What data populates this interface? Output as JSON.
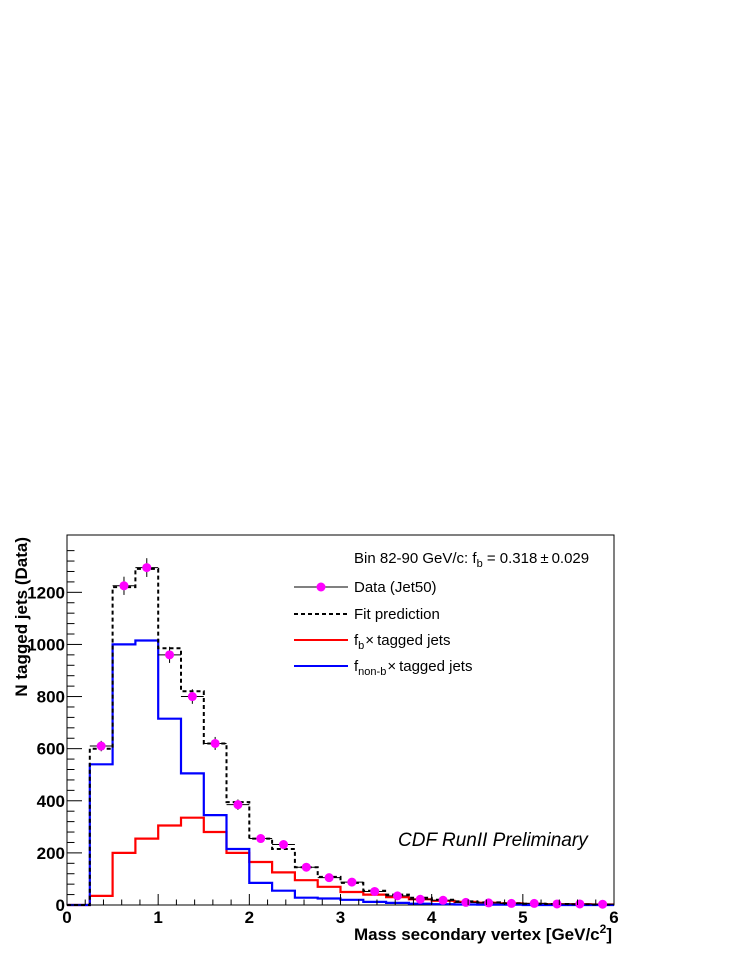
{
  "chart_data": {
    "type": "line",
    "xlabel": "Mass secondary vertex [GeV/c",
    "xlabel_sup": "2",
    "xlabel_end": "]",
    "ylabel": "N tagged jets (Data)",
    "xlim": [
      0,
      6
    ],
    "ylim": [
      0,
      1420
    ],
    "x_ticks": [
      "0",
      "1",
      "2",
      "3",
      "4",
      "5",
      "6"
    ],
    "y_ticks": [
      "0",
      "200",
      "400",
      "600",
      "800",
      "1000",
      "1200"
    ],
    "x_tick_values": [
      0,
      1,
      2,
      3,
      4,
      5,
      6
    ],
    "y_tick_values": [
      0,
      200,
      400,
      600,
      800,
      1000,
      1200
    ],
    "grid": false,
    "legend_position": "top-right",
    "header": {
      "prefix": "Bin 82-90 GeV/c: f",
      "sub": "b",
      "value": " = 0.318",
      "pm": "±",
      "err": "0.029"
    },
    "annotation": "CDF RunII Preliminary",
    "bin_edges": [
      0,
      0.25,
      0.5,
      0.75,
      1.0,
      1.25,
      1.5,
      1.75,
      2.0,
      2.25,
      2.5,
      2.75,
      3.0,
      3.25,
      3.5,
      3.75,
      4.0,
      4.25,
      4.5,
      4.75,
      5.0,
      5.25,
      5.5,
      5.75,
      6.0
    ],
    "series": [
      {
        "name": "Data (Jet50)",
        "kind": "points",
        "color": "#ff00ff",
        "x": [
          0.375,
          0.625,
          0.875,
          1.125,
          1.375,
          1.625,
          1.875,
          2.125,
          2.375,
          2.625,
          2.875,
          3.125,
          3.375,
          3.625,
          3.875,
          4.125,
          4.375,
          4.625,
          4.875,
          5.125,
          5.375,
          5.625,
          5.875
        ],
        "y": [
          610,
          1225,
          1295,
          960,
          800,
          620,
          385,
          255,
          232,
          145,
          105,
          88,
          52,
          35,
          22,
          18,
          10,
          8,
          6,
          6,
          4,
          4,
          3
        ],
        "err": [
          20,
          35,
          36,
          31,
          28,
          25,
          20,
          16,
          15,
          12,
          10,
          9,
          7,
          6,
          5,
          4,
          3,
          3,
          2,
          2,
          2,
          2,
          2
        ]
      },
      {
        "name": "Fit prediction",
        "kind": "hist",
        "style": "dashed",
        "color": "#000000",
        "values": [
          0,
          600,
          1220,
          1290,
          985,
          820,
          620,
          395,
          255,
          215,
          145,
          108,
          85,
          55,
          40,
          28,
          20,
          14,
          10,
          7,
          5,
          4,
          3,
          2
        ]
      },
      {
        "name": "f",
        "sub": "b",
        "suffix": "tagged jets",
        "kind": "hist",
        "color": "#ff0000",
        "values": [
          0,
          35,
          200,
          255,
          305,
          335,
          280,
          200,
          165,
          125,
          95,
          70,
          50,
          40,
          30,
          22,
          16,
          12,
          9,
          6,
          4,
          3,
          3,
          2
        ]
      },
      {
        "name": "f",
        "sub": "non-b",
        "suffix": "tagged jets",
        "kind": "hist",
        "color": "#0000ff",
        "values": [
          0,
          540,
          1000,
          1015,
          715,
          505,
          345,
          215,
          85,
          55,
          28,
          25,
          20,
          12,
          8,
          5,
          3,
          2,
          1,
          1,
          0,
          0,
          0,
          0
        ]
      }
    ],
    "legend": [
      {
        "label": "Data (Jet50)"
      },
      {
        "label": "Fit prediction"
      },
      {
        "prefix": "f",
        "sub": "b",
        "times": "×",
        "suffix": "tagged jets"
      },
      {
        "prefix": "f",
        "sub": "non-b",
        "times": "×",
        "suffix": "tagged jets"
      }
    ]
  }
}
